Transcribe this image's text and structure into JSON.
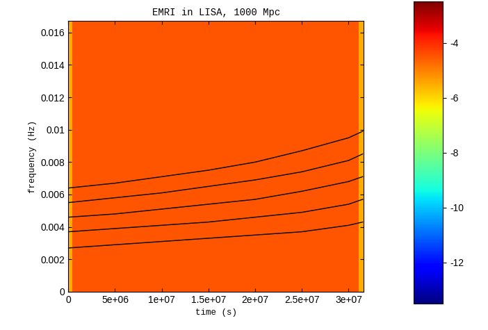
{
  "chart_data": {
    "type": "spectrogram",
    "title": "EMRI in LISA, 1000 Mpc",
    "x_label": "time (s)",
    "y_label": "frequency (Hz)",
    "xlim": [
      0,
      31600000
    ],
    "ylim": [
      0,
      0.0167
    ],
    "xticks": [
      0,
      {
        "value": 5000000,
        "label": "5e+06"
      },
      {
        "value": 10000000,
        "label": "1e+07"
      },
      {
        "value": 15000000,
        "label": "1.5e+07"
      },
      {
        "value": 20000000,
        "label": "2e+07"
      },
      {
        "value": 25000000,
        "label": "2.5e+07"
      },
      {
        "value": 30000000,
        "label": "3e+07"
      }
    ],
    "yticks": [
      0,
      0.002,
      0.004,
      0.006,
      0.008,
      0.01,
      0.012,
      0.014,
      0.016
    ],
    "heatmap": {
      "x_edges": [
        0,
        400000,
        31100000,
        31600000
      ],
      "y_edges": [
        0,
        0.0167
      ],
      "cells": [
        [
          -5.5,
          -4.5,
          -5.5
        ]
      ]
    },
    "colorbar": {
      "range": [
        -13.5,
        -2.5
      ],
      "ticks": [
        -4,
        -6,
        -8,
        -10,
        -12
      ]
    },
    "x": [
      0,
      5000000,
      10000000,
      15000000,
      20000000,
      25000000,
      30000000,
      31500000
    ],
    "series": [
      {
        "color": "black",
        "values": [
          0.0064,
          0.0067,
          0.0071,
          0.0075,
          0.008,
          0.0087,
          0.0095,
          0.0099
        ]
      },
      {
        "color": "black",
        "values": [
          0.0055,
          0.0058,
          0.0061,
          0.0065,
          0.0069,
          0.0074,
          0.0081,
          0.0085
        ]
      },
      {
        "color": "black",
        "values": [
          0.0046,
          0.0048,
          0.0051,
          0.0054,
          0.0057,
          0.0062,
          0.0068,
          0.0071
        ]
      },
      {
        "color": "black",
        "values": [
          0.0037,
          0.0039,
          0.0041,
          0.0043,
          0.0046,
          0.0049,
          0.0054,
          0.0057
        ]
      },
      {
        "color": "black",
        "values": [
          0.0027,
          0.0029,
          0.0031,
          0.0033,
          0.0035,
          0.0037,
          0.0041,
          0.0043
        ]
      }
    ]
  }
}
